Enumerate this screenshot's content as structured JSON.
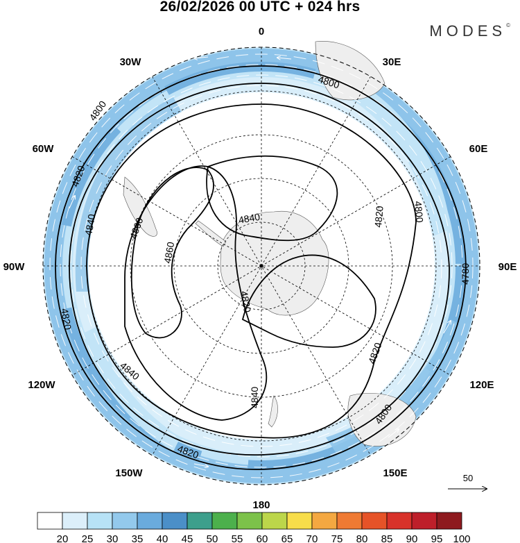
{
  "title": "26/02/2026  00 UTC  + 024 hrs",
  "brand": {
    "name": "MODES",
    "mark": "©"
  },
  "longitude_labels": {
    "n0": "0",
    "n30e": "30E",
    "n60e": "60E",
    "n90e": "90E",
    "n120e": "120E",
    "n150e": "150E",
    "n180": "180",
    "n150w": "150W",
    "n120w": "120W",
    "n90w": "90W",
    "n60w": "60W",
    "n30w": "30W"
  },
  "contour_labels": {
    "c1": "4800",
    "c2": "4800",
    "c3": "4820",
    "c4": "4840",
    "c5": "4860",
    "c6": "4860",
    "c7": "4840",
    "c8": "4820",
    "c9": "4820",
    "c10": "4800",
    "c11": "4780",
    "c12": "4820",
    "c13": "4840",
    "c14": "4840",
    "c15": "4820",
    "c16": "4820",
    "c17": "4800"
  },
  "reference_vector": {
    "label": "50"
  },
  "colorbar": {
    "ticks": [
      "20",
      "25",
      "30",
      "35",
      "40",
      "45",
      "50",
      "55",
      "60",
      "65",
      "70",
      "75",
      "80",
      "85",
      "90",
      "95",
      "100"
    ],
    "colors": [
      "#ffffff",
      "#dceffa",
      "#b7e2f6",
      "#93c9ec",
      "#6aabdd",
      "#4b8fc8",
      "#3d9f8c",
      "#4cb04c",
      "#7cc24a",
      "#bcd64a",
      "#f7dd4a",
      "#f4a841",
      "#ef7a33",
      "#e65328",
      "#d8322a",
      "#be1f2a",
      "#8e1a1e"
    ]
  }
}
